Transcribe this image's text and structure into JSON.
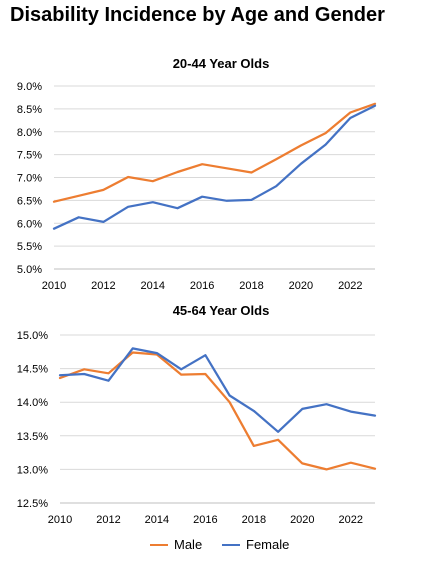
{
  "page": {
    "title": "Disability Incidence by Age and Gender"
  },
  "legend": {
    "male_label": "Male",
    "female_label": "Female"
  },
  "colors": {
    "male": "#ed7d31",
    "female": "#4472c4"
  },
  "chart_data": [
    {
      "type": "line",
      "title": "20-44 Year Olds",
      "x": [
        2010,
        2011,
        2012,
        2013,
        2014,
        2015,
        2016,
        2017,
        2018,
        2019,
        2020,
        2021,
        2022,
        2023
      ],
      "xticks": [
        "2010",
        "2012",
        "2014",
        "2016",
        "2018",
        "2020",
        "2022"
      ],
      "ylim": [
        5.0,
        9.0
      ],
      "yticks": [
        "5.0%",
        "5.5%",
        "6.0%",
        "6.5%",
        "7.0%",
        "7.5%",
        "8.0%",
        "8.5%",
        "9.0%"
      ],
      "grid": true,
      "series": [
        {
          "name": "Male",
          "values": [
            6.47,
            6.6,
            6.73,
            7.01,
            6.92,
            7.12,
            7.29,
            7.2,
            7.11,
            7.4,
            7.7,
            7.97,
            8.42,
            8.61
          ]
        },
        {
          "name": "Female",
          "values": [
            5.88,
            6.13,
            6.03,
            6.36,
            6.46,
            6.33,
            6.58,
            6.49,
            6.51,
            6.81,
            7.3,
            7.72,
            8.3,
            8.57
          ]
        }
      ]
    },
    {
      "type": "line",
      "title": "45-64 Year Olds",
      "x": [
        2010,
        2011,
        2012,
        2013,
        2014,
        2015,
        2016,
        2017,
        2018,
        2019,
        2020,
        2021,
        2022,
        2023
      ],
      "xticks": [
        "2010",
        "2012",
        "2014",
        "2016",
        "2018",
        "2020",
        "2022"
      ],
      "ylim": [
        12.5,
        15.0
      ],
      "yticks": [
        "12.5%",
        "13.0%",
        "13.5%",
        "14.0%",
        "14.5%",
        "15.0%"
      ],
      "grid": true,
      "legend": "bottom",
      "series": [
        {
          "name": "Male",
          "values": [
            14.36,
            14.49,
            14.43,
            14.74,
            14.71,
            14.41,
            14.42,
            14.0,
            13.35,
            13.44,
            13.09,
            13.0,
            13.1,
            13.01
          ]
        },
        {
          "name": "Female",
          "values": [
            14.4,
            14.42,
            14.32,
            14.8,
            14.73,
            14.49,
            14.7,
            14.1,
            13.87,
            13.56,
            13.9,
            13.97,
            13.86,
            13.8
          ]
        }
      ]
    }
  ]
}
